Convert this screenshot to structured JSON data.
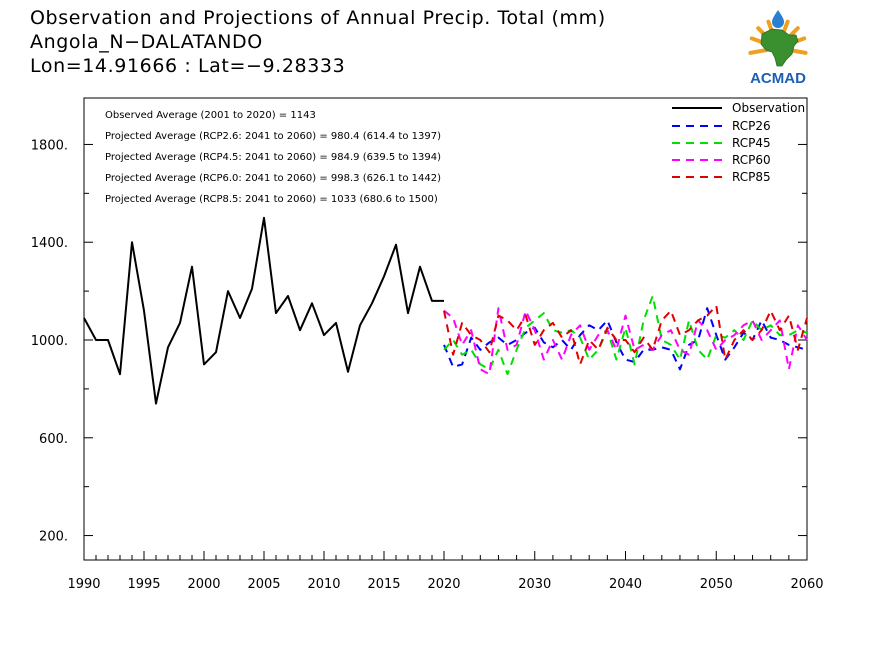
{
  "header": {
    "title": "Observation and Projections of Annual Precip. Total (mm)",
    "station": "Angola_N−DALATANDO",
    "coords": "Lon=14.91666 : Lat=−9.28333"
  },
  "logo": {
    "text": "ACMAD",
    "colors": {
      "africa": "#3a8f2e",
      "sun": "#f0a020",
      "drop": "#2a7fd0",
      "text": "#1d5fb5"
    }
  },
  "stats": [
    "Observed Average (2001 to 2020) = 1143",
    "Projected Average (RCP2.6: 2041 to 2060) = 980.4 (614.4 to 1397)",
    "Projected Average (RCP4.5: 2041 to 2060) = 984.9 (639.5 to 1394)",
    "Projected Average (RCP6.0: 2041 to 2060) = 998.3 (626.1 to 1442)",
    "Projected Average (RCP8.5: 2041 to 2060) = 1033 (680.6 to 1500)"
  ],
  "chart_data": {
    "type": "line",
    "xlim": [
      1990,
      2060
    ],
    "ylim": [
      100,
      1990
    ],
    "yticks": [
      200,
      600,
      1000,
      1400,
      1800
    ],
    "ytick_labels": [
      "200.",
      "600.",
      "1000.",
      "1400.",
      "1800."
    ],
    "xticks": [
      1990,
      1995,
      2000,
      2005,
      2010,
      2015,
      2020,
      2030,
      2040,
      2050,
      2060
    ],
    "xtick_labels": [
      "1990",
      "1995",
      "2000",
      "2005",
      "2010",
      "2015",
      "2020",
      "2030",
      "2040",
      "2050",
      "2060"
    ],
    "series": [
      {
        "name": "Observation",
        "color": "#000000",
        "dashed": false,
        "x": [
          1990,
          1991,
          1992,
          1993,
          1994,
          1995,
          1996,
          1997,
          1998,
          1999,
          2000,
          2001,
          2002,
          2003,
          2004,
          2005,
          2006,
          2007,
          2008,
          2009,
          2010,
          2011,
          2012,
          2013,
          2014,
          2015,
          2016,
          2017,
          2018,
          2019,
          2020
        ],
        "y": [
          1090,
          1000,
          1000,
          860,
          1400,
          1120,
          740,
          970,
          1070,
          1300,
          900,
          950,
          1200,
          1090,
          1210,
          1500,
          1110,
          1180,
          1040,
          1150,
          1020,
          1070,
          870,
          1060,
          1150,
          1260,
          1390,
          1110,
          1300,
          1160,
          1160
        ]
      },
      {
        "name": "RCP26",
        "color": "#0000ff",
        "dashed": true,
        "x": [
          2020,
          2021,
          2022,
          2023,
          2024,
          2025,
          2026,
          2027,
          2028,
          2029,
          2030,
          2031,
          2032,
          2033,
          2034,
          2035,
          2036,
          2037,
          2038,
          2039,
          2040,
          2041,
          2042,
          2043,
          2044,
          2045,
          2046,
          2047,
          2048,
          2049,
          2050,
          2051,
          2052,
          2053,
          2054,
          2055,
          2056,
          2057,
          2058,
          2059,
          2060
        ],
        "y": [
          980,
          890,
          900,
          1010,
          960,
          990,
          1010,
          980,
          1000,
          1030,
          1050,
          990,
          970,
          1000,
          960,
          1020,
          1060,
          1040,
          1080,
          990,
          920,
          910,
          960,
          960,
          970,
          960,
          880,
          980,
          1000,
          1130,
          1020,
          920,
          970,
          1030,
          1000,
          1080,
          1010,
          1000,
          980,
          970,
          960
        ]
      },
      {
        "name": "RCP45",
        "color": "#00e000",
        "dashed": true,
        "x": [
          2020,
          2021,
          2022,
          2023,
          2024,
          2025,
          2026,
          2027,
          2028,
          2029,
          2030,
          2031,
          2032,
          2033,
          2034,
          2035,
          2036,
          2037,
          2038,
          2039,
          2040,
          2041,
          2042,
          2043,
          2044,
          2045,
          2046,
          2047,
          2048,
          2049,
          2050,
          2051,
          2052,
          2053,
          2054,
          2055,
          2056,
          2057,
          2058,
          2059,
          2060
        ],
        "y": [
          960,
          1000,
          940,
          960,
          900,
          880,
          960,
          860,
          960,
          1050,
          1080,
          1110,
          1040,
          1030,
          1040,
          1010,
          920,
          960,
          1040,
          920,
          1050,
          900,
          1080,
          1180,
          1000,
          980,
          920,
          1080,
          960,
          920,
          1020,
          1010,
          1040,
          1000,
          1080,
          1040,
          1060,
          1020,
          1020,
          1040,
          1030
        ]
      },
      {
        "name": "RCP60",
        "color": "#ff00ff",
        "dashed": true,
        "x": [
          2020,
          2021,
          2022,
          2023,
          2024,
          2025,
          2026,
          2027,
          2028,
          2029,
          2030,
          2031,
          2032,
          2033,
          2034,
          2035,
          2036,
          2037,
          2038,
          2039,
          2040,
          2041,
          2042,
          2043,
          2044,
          2045,
          2046,
          2047,
          2048,
          2049,
          2050,
          2051,
          2052,
          2053,
          2054,
          2055,
          2056,
          2057,
          2058,
          2059,
          2060
        ],
        "y": [
          1120,
          1090,
          980,
          1040,
          880,
          860,
          1130,
          960,
          980,
          1120,
          1040,
          920,
          1000,
          920,
          1020,
          1060,
          960,
          1020,
          1040,
          960,
          1100,
          960,
          980,
          960,
          1020,
          1040,
          960,
          940,
          1080,
          1040,
          960,
          1000,
          1020,
          1060,
          1080,
          1000,
          1040,
          1080,
          880,
          1060,
          1000
        ]
      },
      {
        "name": "RCP85",
        "color": "#e00000",
        "dashed": true,
        "x": [
          2020,
          2021,
          2022,
          2023,
          2024,
          2025,
          2026,
          2027,
          2028,
          2029,
          2030,
          2031,
          2032,
          2033,
          2034,
          2035,
          2036,
          2037,
          2038,
          2039,
          2040,
          2041,
          2042,
          2043,
          2044,
          2045,
          2046,
          2047,
          2048,
          2049,
          2050,
          2051,
          2052,
          2053,
          2054,
          2055,
          2056,
          2057,
          2058,
          2059,
          2060
        ],
        "y": [
          1120,
          940,
          1070,
          1020,
          1000,
          950,
          1100,
          1080,
          1040,
          1100,
          980,
          1040,
          1070,
          1010,
          1040,
          900,
          1000,
          960,
          1050,
          1000,
          1000,
          950,
          1010,
          960,
          1080,
          1120,
          1020,
          1040,
          1080,
          1100,
          1140,
          920,
          1000,
          1040,
          1000,
          1040,
          1120,
          1040,
          1100,
          960,
          1090
        ]
      }
    ]
  }
}
